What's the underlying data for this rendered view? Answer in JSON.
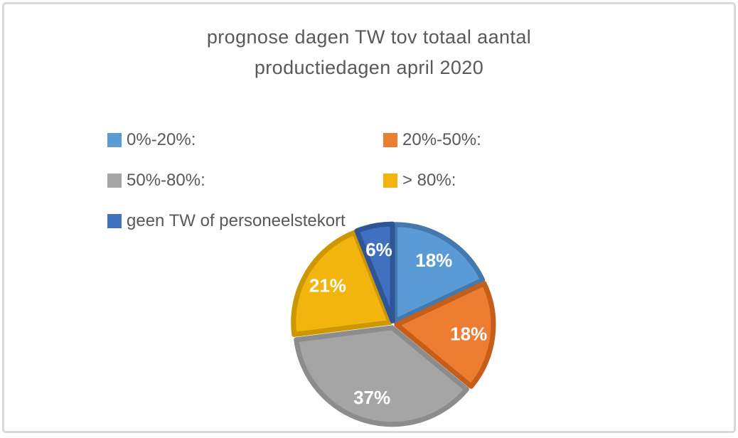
{
  "window": {
    "background_color": "#FFFFFF",
    "frame_border_color": "#D9D9D9"
  },
  "chart_data": {
    "type": "pie",
    "title": "prognose dagen TW tov totaal aantal\nproductiedagen april 2020",
    "title_color": "#595959",
    "legend_position": "top-left, two columns, square markers",
    "legend_text_color": "#595959",
    "data_label_color": "#FFFFFF",
    "start_angle_deg": 0,
    "direction": "clockwise",
    "slices": [
      {
        "label": "0%-20%:",
        "value": 18,
        "data_label": "18%",
        "color": "#5B9BD5",
        "border": "#4479AE"
      },
      {
        "label": "20%-50%:",
        "value": 18,
        "data_label": "18%",
        "color": "#ED7D31",
        "border": "#C45E1A"
      },
      {
        "label": "50%-80%:",
        "value": 37,
        "data_label": "37%",
        "color": "#A5A5A5",
        "border": "#8C8C8C"
      },
      {
        "label": "> 80%:",
        "value": 21,
        "data_label": "21%",
        "color": "#F2B50D",
        "border": "#CC9700"
      },
      {
        "label": "geen TW of personeelstekort",
        "value": 6,
        "data_label": "6%",
        "color": "#4070C0",
        "border": "#2F5597"
      }
    ]
  }
}
